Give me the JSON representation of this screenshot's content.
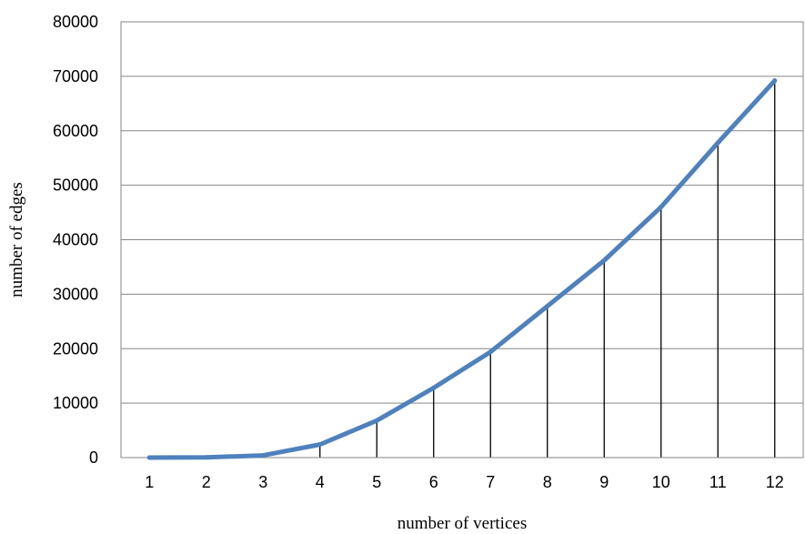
{
  "chart_data": {
    "type": "line",
    "title": "",
    "xlabel": "number of vertices",
    "ylabel": "number of edges",
    "categories": [
      "1",
      "2",
      "3",
      "4",
      "5",
      "6",
      "7",
      "8",
      "9",
      "10",
      "11",
      "12"
    ],
    "values": [
      0,
      40,
      400,
      2400,
      6800,
      12800,
      19400,
      27800,
      36200,
      46000,
      57800,
      69200
    ],
    "ylim": [
      0,
      80000
    ],
    "yticks": [
      "0",
      "10000",
      "20000",
      "30000",
      "40000",
      "50000",
      "60000",
      "70000",
      "80000"
    ],
    "grid": "horizontal",
    "drop_lines": true,
    "legend": "none",
    "colors": {
      "line": "#4f81bd",
      "grid": "#868686",
      "drop_line": "#000000"
    }
  }
}
